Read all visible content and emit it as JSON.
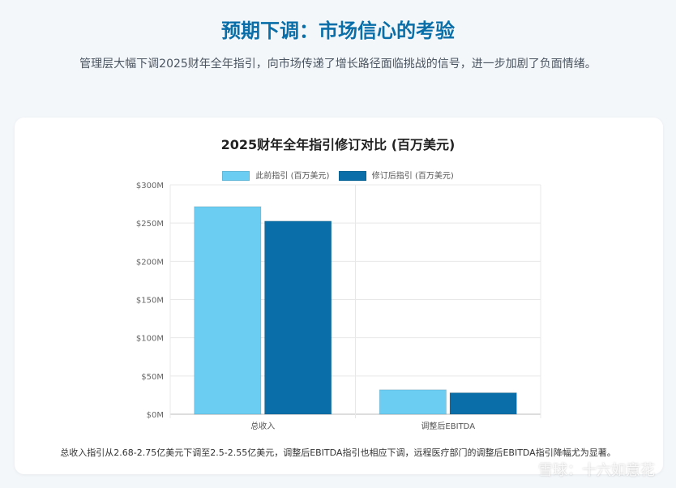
{
  "header": {
    "title": "预期下调：市场信心的考验",
    "subtitle": "管理层大幅下调2025财年全年指引，向市场传递了增长路径面临挑战的信号，进一步加剧了负面情绪。"
  },
  "chart_data": {
    "type": "bar",
    "title": "2025财年全年指引修订对比 (百万美元)",
    "categories": [
      "总收入",
      "调整后EBITDA"
    ],
    "series": [
      {
        "name": "此前指引 (百万美元)",
        "values": [
          271.5,
          32
        ],
        "color": "#6ccdf2"
      },
      {
        "name": "修订后指引 (百万美元)",
        "values": [
          252.5,
          28
        ],
        "color": "#0a6fa8"
      }
    ],
    "ylim": [
      0,
      300
    ],
    "yticks": [
      0,
      50,
      100,
      150,
      200,
      250,
      300
    ],
    "ytick_labels": [
      "$0M",
      "$50M",
      "$100M",
      "$150M",
      "$200M",
      "$250M",
      "$300M"
    ],
    "grid": true,
    "legend": "top-center"
  },
  "footnote": "总收入指引从2.68-2.75亿美元下调至2.5-2.55亿美元，调整后EBITDA指引也相应下调，远程医疗部门的调整后EBITDA指引降幅尤为显著。",
  "watermark": "雪球：十六如意花"
}
